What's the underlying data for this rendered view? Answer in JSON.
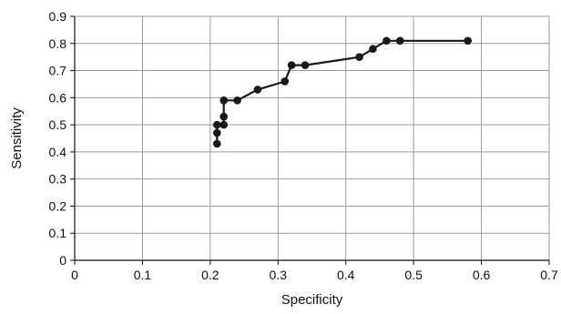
{
  "chart_data": {
    "type": "line",
    "title": "",
    "xlabel": "Specificity",
    "ylabel": "Sensitivity",
    "xlim": [
      0,
      0.7
    ],
    "ylim": [
      0,
      0.9
    ],
    "x_ticks": [
      0,
      0.1,
      0.2,
      0.3,
      0.4,
      0.5,
      0.6,
      0.7
    ],
    "x_tick_labels": [
      "0",
      "0.1",
      "0.2",
      "0.3",
      "0.4",
      "0.5",
      "0.6",
      "0.7"
    ],
    "y_ticks": [
      0,
      0.1,
      0.2,
      0.3,
      0.4,
      0.5,
      0.6,
      0.7,
      0.8,
      0.9
    ],
    "y_tick_labels": [
      "0",
      "0.1",
      "0.2",
      "0.3",
      "0.4",
      "0.5",
      "0.6",
      "0.7",
      "0.8",
      "0.9"
    ],
    "grid": true,
    "legend": "none",
    "series": [
      {
        "color": "#1a1a1a",
        "marker": "circle",
        "points": [
          {
            "x": 0.21,
            "y": 0.43
          },
          {
            "x": 0.21,
            "y": 0.47
          },
          {
            "x": 0.21,
            "y": 0.5
          },
          {
            "x": 0.22,
            "y": 0.5
          },
          {
            "x": 0.22,
            "y": 0.53
          },
          {
            "x": 0.22,
            "y": 0.59
          },
          {
            "x": 0.24,
            "y": 0.59
          },
          {
            "x": 0.27,
            "y": 0.63
          },
          {
            "x": 0.31,
            "y": 0.66
          },
          {
            "x": 0.32,
            "y": 0.72
          },
          {
            "x": 0.34,
            "y": 0.72
          },
          {
            "x": 0.42,
            "y": 0.75
          },
          {
            "x": 0.44,
            "y": 0.78
          },
          {
            "x": 0.46,
            "y": 0.81
          },
          {
            "x": 0.48,
            "y": 0.81
          },
          {
            "x": 0.58,
            "y": 0.81
          }
        ]
      }
    ]
  }
}
